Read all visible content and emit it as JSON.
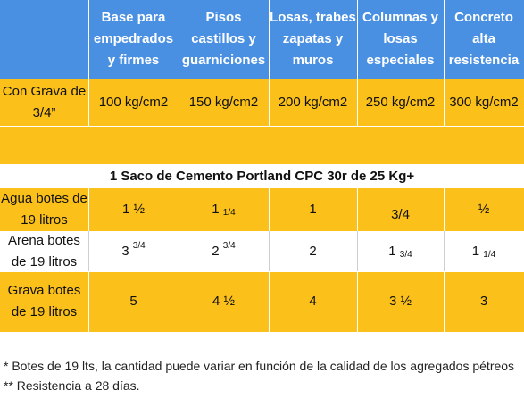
{
  "headers": [
    "Base para empedrados y firmes",
    "Pisos castillos y guarniciones",
    "Losas, trabes zapatas y muros",
    "Columnas y losas especiales",
    "Concreto alta resistencia"
  ],
  "grava_label": "Con Grava de 3/4”",
  "resistencias": [
    "100 kg/cm2",
    "150 kg/cm2",
    "200 kg/cm2",
    "250 kg/cm2",
    "300 kg/cm2"
  ],
  "saco_title": "1 Saco de Cemento Portland CPC 30r de 25 Kg+",
  "agua": {
    "label": "Agua botes de 19 litros",
    "values": [
      {
        "whole": "1",
        "frac": "½",
        "pos": "inline"
      },
      {
        "whole": "1",
        "frac": "1/4",
        "pos": "sub"
      },
      {
        "whole": "1",
        "frac": "",
        "pos": ""
      },
      {
        "whole": "3/4",
        "frac": "",
        "pos": ""
      },
      {
        "whole": "½",
        "frac": "",
        "pos": ""
      }
    ]
  },
  "arena": {
    "label": "Arena botes de 19 litros",
    "values": [
      {
        "whole": "3",
        "frac": "3/4",
        "pos": "sup"
      },
      {
        "whole": "2",
        "frac": "3/4",
        "pos": "sup"
      },
      {
        "whole": "2",
        "frac": "",
        "pos": ""
      },
      {
        "whole": "1",
        "frac": "3/4",
        "pos": "sub"
      },
      {
        "whole": "1",
        "frac": "1/4",
        "pos": "sub"
      }
    ]
  },
  "grava": {
    "label": "Grava botes de 19 litros",
    "values": [
      {
        "whole": "5",
        "frac": "",
        "pos": ""
      },
      {
        "whole": "4 ½",
        "frac": "",
        "pos": ""
      },
      {
        "whole": "4",
        "frac": "",
        "pos": ""
      },
      {
        "whole": "3 ½",
        "frac": "",
        "pos": ""
      },
      {
        "whole": "3",
        "frac": "",
        "pos": ""
      }
    ]
  },
  "notes": [
    "* Botes de 19 lts, la cantidad puede variar en función de la calidad de los agregados pétreos",
    "** Resistencia a 28 días."
  ]
}
